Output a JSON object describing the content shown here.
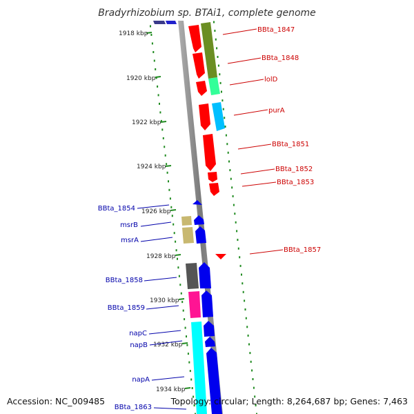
{
  "title": "Bradyrhizobium sp. BTAi1, complete genome",
  "footer": {
    "accession": "Accession: NC_009485",
    "summary": "Topology: circular; Length: 8,264,687 bp; Genes: 7,463"
  },
  "kbp_ticks": [
    "1918 kbp",
    "1920 kbp",
    "1922 kbp",
    "1924 kbp",
    "1926 kbp",
    "1928 kbp",
    "1930 kbp",
    "1932 kbp",
    "1934 kbp"
  ],
  "labels_right": [
    "BBta_1847",
    "BBta_1848",
    "lolD",
    "purA",
    "BBta_1851",
    "BBta_1852",
    "BBta_1853",
    "BBta_1857"
  ],
  "labels_left": [
    "BBta_1854",
    "msrB",
    "msrA",
    "BBta_1858",
    "BBta_1859",
    "napC",
    "napB",
    "napA",
    "BBta_1863"
  ],
  "colors": {
    "backbone": "#8a8a8a",
    "tick_green": "#1f8a1f",
    "forward_label": "#cc0000",
    "reverse_label": "#0000aa",
    "gene_red": "#ff0000",
    "gene_blue": "#0000ee",
    "gene_olive": "#6b8e23",
    "gene_mint": "#33ff99",
    "gene_sky": "#00bfff",
    "gene_khaki": "#c8b870",
    "gene_gray": "#555555",
    "gene_pink": "#ff1493",
    "gene_cyan": "#00ffff"
  }
}
